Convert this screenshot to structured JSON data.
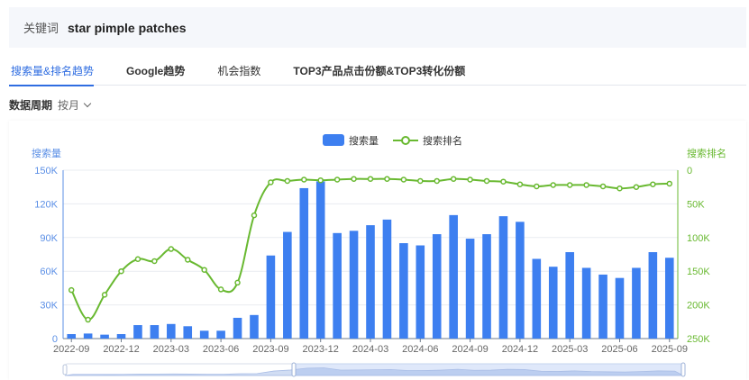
{
  "keyword": {
    "label": "关键词",
    "value": "star pimple patches"
  },
  "tabs": [
    {
      "label": "搜索量&排名趋势",
      "active": true
    },
    {
      "label": "Google趋势"
    },
    {
      "label": "机会指数"
    },
    {
      "label": "TOP3产品点击份额&TOP3转化份额"
    }
  ],
  "period": {
    "label": "数据周期",
    "value": "按月"
  },
  "colors": {
    "bar": "#3d7ff0",
    "line": "#69b931",
    "accent": "#2f6de1"
  },
  "chart_data": {
    "type": "bar",
    "categories": [
      "2022-09",
      "2022-10",
      "2022-11",
      "2022-12",
      "2023-01",
      "2023-02",
      "2023-03",
      "2023-04",
      "2023-05",
      "2023-06",
      "2023-07",
      "2023-08",
      "2023-09",
      "2023-10",
      "2023-11",
      "2023-12",
      "2024-01",
      "2024-02",
      "2024-03",
      "2024-04",
      "2024-05",
      "2024-06",
      "2024-07",
      "2024-08",
      "2024-09",
      "2024-10",
      "2024-11",
      "2024-12",
      "2025-01",
      "2025-02",
      "2025-03",
      "2025-04",
      "2025-05",
      "2025-06",
      "2025-07",
      "2025-08",
      "2025-09"
    ],
    "x_tick_labels": [
      "2022-09",
      "2022-12",
      "2023-03",
      "2023-06",
      "2023-09",
      "2023-12",
      "2024-03",
      "2024-06",
      "2024-09",
      "2024-12",
      "2025-03",
      "2025-06",
      "2025-09"
    ],
    "series": [
      {
        "name": "搜索量",
        "type": "bar",
        "axis": "left",
        "values": [
          4000,
          4500,
          3500,
          4000,
          12000,
          12000,
          13000,
          11000,
          7000,
          7000,
          18500,
          21000,
          74000,
          95000,
          134000,
          140000,
          94000,
          96000,
          101000,
          106000,
          85000,
          83000,
          93000,
          110000,
          89000,
          93000,
          109000,
          104000,
          71000,
          64000,
          77000,
          63000,
          57000,
          54000,
          63000,
          77000,
          72000
        ]
      },
      {
        "name": "搜索排名",
        "type": "line",
        "axis": "right",
        "values": [
          178000,
          222000,
          185000,
          150000,
          132000,
          135000,
          117000,
          133000,
          148000,
          177000,
          167000,
          67000,
          18000,
          16000,
          14000,
          15000,
          14000,
          13000,
          13000,
          13000,
          14000,
          16000,
          16000,
          13000,
          14000,
          16000,
          17000,
          21000,
          24000,
          22000,
          22000,
          22000,
          24000,
          27000,
          25000,
          21000,
          20000
        ]
      }
    ],
    "left_axis": {
      "title": "搜索量",
      "ticks": [
        "0",
        "30K",
        "60K",
        "90K",
        "120K",
        "150K"
      ],
      "range": [
        0,
        150000
      ]
    },
    "right_axis": {
      "title": "搜索排名",
      "ticks": [
        "0",
        "50K",
        "100K",
        "150K",
        "200K",
        "250K"
      ],
      "range": [
        0,
        250000
      ],
      "inverted": true
    },
    "legend": {
      "position": "top-center"
    }
  }
}
